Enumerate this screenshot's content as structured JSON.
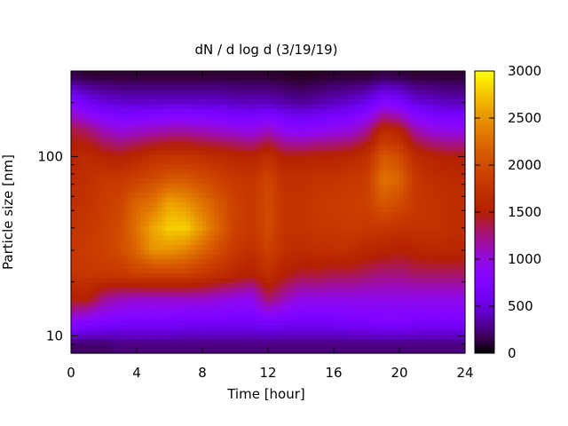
{
  "chart_data": {
    "type": "heatmap",
    "title": "dN / d log d (3/19/19)",
    "xlabel": "Time [hour]",
    "ylabel": "Particle size [nm]",
    "x_range": [
      0,
      24
    ],
    "x_ticks": [
      0,
      4,
      8,
      12,
      16,
      20,
      24
    ],
    "y_scale": "log",
    "y_range_nm": [
      8,
      300
    ],
    "y_ticks": [
      10,
      100
    ],
    "colorbar": {
      "range": [
        0,
        3000
      ],
      "ticks": [
        0,
        500,
        1000,
        1500,
        2000,
        2500,
        3000
      ],
      "colormap": "gnuplot",
      "stops": [
        "#000000",
        "#7f00ff",
        "#ff4000",
        "#ffff00"
      ]
    },
    "time_hours": [
      0,
      1,
      2,
      3,
      4,
      5,
      6,
      7,
      8,
      9,
      10,
      11,
      12,
      13,
      14,
      15,
      16,
      17,
      18,
      19,
      20,
      21,
      22,
      23,
      24
    ],
    "size_bins_nm": [
      9,
      12,
      16,
      22,
      30,
      40,
      55,
      75,
      100,
      140,
      200,
      280
    ],
    "concentration": [
      [
        200,
        900,
        1500,
        1750,
        1800,
        1750,
        1700,
        1650,
        1550,
        1400,
        800,
        150
      ],
      [
        200,
        800,
        1500,
        1800,
        1850,
        1800,
        1750,
        1700,
        1650,
        1300,
        600,
        100
      ],
      [
        200,
        750,
        1200,
        1800,
        1900,
        1900,
        1850,
        1800,
        1550,
        1100,
        500,
        100
      ],
      [
        250,
        700,
        1100,
        1800,
        2000,
        2000,
        1950,
        1800,
        1500,
        1000,
        450,
        100
      ],
      [
        250,
        700,
        1050,
        1900,
        2200,
        2300,
        2200,
        1900,
        1600,
        1050,
        450,
        100
      ],
      [
        250,
        700,
        1050,
        1900,
        2500,
        2600,
        2300,
        2000,
        1700,
        1100,
        450,
        100
      ],
      [
        250,
        700,
        1050,
        1900,
        2500,
        2800,
        2600,
        2100,
        1750,
        1150,
        450,
        100
      ],
      [
        250,
        650,
        1050,
        1900,
        2400,
        2800,
        2500,
        2100,
        1750,
        1150,
        450,
        100
      ],
      [
        250,
        650,
        1050,
        1800,
        2200,
        2500,
        2300,
        2000,
        1700,
        1100,
        450,
        100
      ],
      [
        250,
        650,
        1000,
        1700,
        2000,
        2200,
        2100,
        1900,
        1650,
        1050,
        450,
        100
      ],
      [
        250,
        650,
        950,
        1600,
        1800,
        1900,
        1900,
        1800,
        1600,
        1000,
        400,
        100
      ],
      [
        250,
        650,
        900,
        1500,
        1700,
        1800,
        1800,
        1750,
        1550,
        950,
        400,
        100
      ],
      [
        250,
        700,
        1300,
        1700,
        1900,
        2000,
        2000,
        1950,
        1700,
        1100,
        400,
        100
      ],
      [
        250,
        650,
        1100,
        1500,
        1700,
        1750,
        1750,
        1700,
        1500,
        900,
        350,
        80
      ],
      [
        250,
        650,
        950,
        1400,
        1650,
        1750,
        1750,
        1700,
        1500,
        850,
        300,
        60
      ],
      [
        250,
        650,
        950,
        1400,
        1700,
        1800,
        1800,
        1750,
        1550,
        900,
        350,
        80
      ],
      [
        250,
        650,
        950,
        1350,
        1700,
        1800,
        1850,
        1750,
        1550,
        950,
        400,
        100
      ],
      [
        250,
        700,
        950,
        1350,
        1700,
        1850,
        1850,
        1800,
        1600,
        1000,
        450,
        100
      ],
      [
        250,
        700,
        950,
        1300,
        1600,
        1800,
        1900,
        1850,
        1700,
        1200,
        550,
        100
      ],
      [
        250,
        750,
        950,
        1250,
        1550,
        1800,
        2100,
        2300,
        2100,
        1650,
        800,
        150
      ],
      [
        250,
        750,
        950,
        1250,
        1500,
        1750,
        2000,
        2200,
        2000,
        1550,
        700,
        130
      ],
      [
        250,
        700,
        950,
        1300,
        1550,
        1750,
        1800,
        1800,
        1650,
        1150,
        500,
        100
      ],
      [
        250,
        700,
        950,
        1300,
        1600,
        1750,
        1750,
        1700,
        1550,
        1000,
        450,
        100
      ],
      [
        250,
        700,
        950,
        1300,
        1600,
        1700,
        1700,
        1650,
        1500,
        950,
        400,
        100
      ],
      [
        250,
        700,
        950,
        1300,
        1600,
        1700,
        1700,
        1650,
        1500,
        950,
        400,
        100
      ]
    ]
  }
}
